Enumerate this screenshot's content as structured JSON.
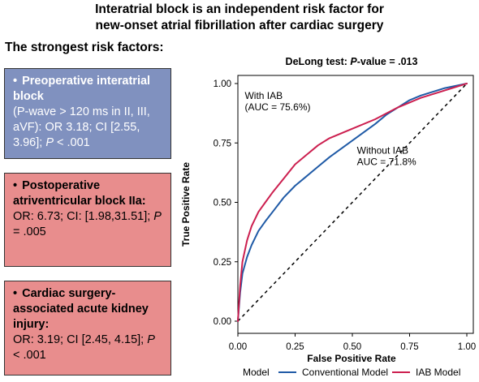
{
  "header": {
    "title_line1": "Interatrial block is an independent risk factor for",
    "title_line2": "new-onset atrial fibrillation after cardiac surgery",
    "subtitle": "The strongest risk factors:"
  },
  "boxes": [
    {
      "bullet": "•",
      "head": "Preoperative interatrial block",
      "body_pre": "(P-wave > 120 ms in II, III, aVF): OR 3.18; CI [2.55, 3.96];",
      "p_label": "P",
      "p_value": "< .001",
      "color": "#8091bf"
    },
    {
      "bullet": "•",
      "head": "Postoperative atriventricular block IIa:",
      "body_pre": "OR: 6.73; CI: [1.98,31.51];",
      "p_label": "P",
      "p_value": "= .005",
      "color": "#e88d8d"
    },
    {
      "bullet": "•",
      "head": "Cardiac surgery-associated acute kidney injury:",
      "body_pre": "OR: 3.19; CI [2.45, 4.15];",
      "p_label": "P",
      "p_value": "< .001",
      "color": "#e88d8d"
    }
  ],
  "chart_data": {
    "type": "line",
    "title_pre": "DeLong test: ",
    "title_italic": "P",
    "title_post": "-value = .013",
    "xlabel": "False Positive Rate",
    "ylabel": "True Positive Rate",
    "xlim": [
      0,
      1
    ],
    "ylim": [
      0,
      1
    ],
    "xticks": [
      "0.00",
      "0.25",
      "0.50",
      "0.75",
      "1.00"
    ],
    "yticks": [
      "0.00",
      "0.25",
      "0.50",
      "0.75",
      "1.00"
    ],
    "grid": false,
    "legend_title": "Model",
    "legend_position": "bottom",
    "annotations": [
      {
        "line1": "With IAB",
        "line2": "(AUC = 75.6%)",
        "x": 0.03,
        "y": 0.98
      },
      {
        "line1": "Without IAB",
        "line2": "AUC = 71.8%",
        "x": 0.52,
        "y": 0.75
      }
    ],
    "series": [
      {
        "name": "Conventional Model",
        "color": "#1f5aa6",
        "x": [
          0,
          0.01,
          0.02,
          0.04,
          0.06,
          0.09,
          0.12,
          0.16,
          0.2,
          0.25,
          0.3,
          0.35,
          0.4,
          0.5,
          0.6,
          0.65,
          0.7,
          0.75,
          0.8,
          0.9,
          1.0
        ],
        "y": [
          0,
          0.12,
          0.2,
          0.27,
          0.32,
          0.38,
          0.42,
          0.47,
          0.52,
          0.57,
          0.61,
          0.65,
          0.69,
          0.76,
          0.83,
          0.87,
          0.9,
          0.93,
          0.95,
          0.98,
          1.0
        ]
      },
      {
        "name": "IAB Model",
        "color": "#cc1f4f",
        "x": [
          0,
          0.01,
          0.02,
          0.04,
          0.06,
          0.09,
          0.12,
          0.15,
          0.2,
          0.25,
          0.3,
          0.35,
          0.4,
          0.5,
          0.6,
          0.7,
          0.75,
          0.8,
          0.9,
          1.0
        ],
        "y": [
          0,
          0.15,
          0.25,
          0.34,
          0.4,
          0.46,
          0.5,
          0.54,
          0.6,
          0.66,
          0.7,
          0.74,
          0.77,
          0.81,
          0.85,
          0.9,
          0.92,
          0.94,
          0.97,
          1.0
        ]
      }
    ]
  }
}
